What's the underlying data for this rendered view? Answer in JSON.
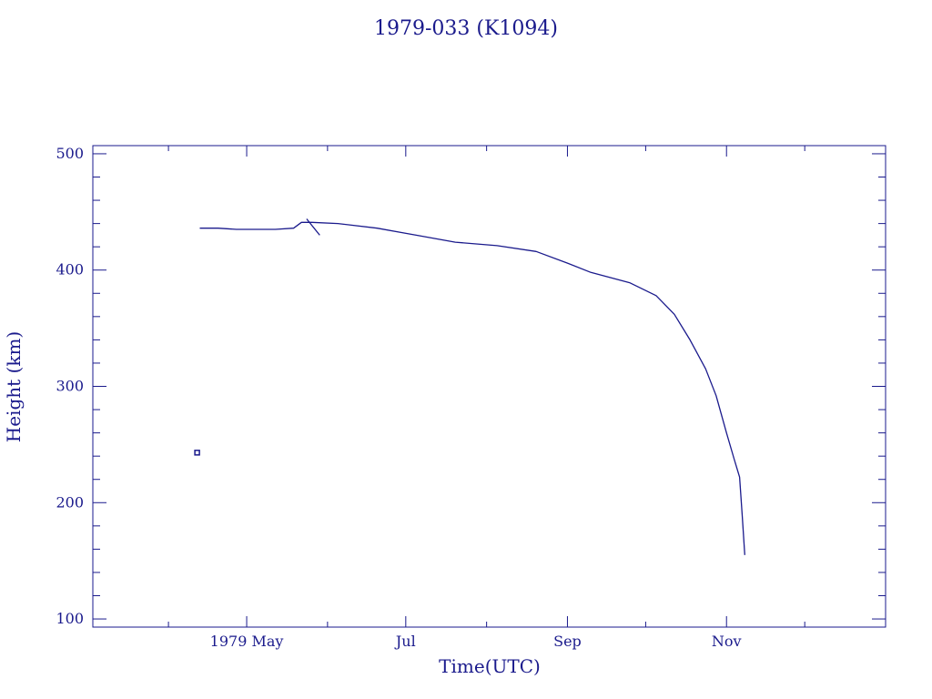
{
  "chart_data": {
    "type": "line",
    "title": "1979-033 (K1094)",
    "xlabel": "Time(UTC)",
    "ylabel": "Height (km)",
    "x_ticks": [
      {
        "date": "1979-05-01",
        "label": "1979 May"
      },
      {
        "date": "1979-07-01",
        "label": "Jul"
      },
      {
        "date": "1979-09-01",
        "label": "Sep"
      },
      {
        "date": "1979-11-01",
        "label": "Nov"
      }
    ],
    "x_minor_ticks": [
      "1979-04-01",
      "1979-06-01",
      "1979-08-01",
      "1979-10-01",
      "1979-12-01"
    ],
    "xlim": [
      "1979-03-03",
      "1980-01-01"
    ],
    "y_ticks": [
      100,
      200,
      300,
      400,
      500
    ],
    "ylim": [
      93,
      507
    ],
    "grid": false,
    "color": "#1a1a8c",
    "series": [
      {
        "x": [
          "1979-04-13",
          "1979-04-20",
          "1979-04-27",
          "1979-05-05",
          "1979-05-12",
          "1979-05-19",
          "1979-05-22",
          "1979-05-26",
          "1979-06-05",
          "1979-06-20",
          "1979-07-05",
          "1979-07-20",
          "1979-08-05",
          "1979-08-20",
          "1979-09-01",
          "1979-09-10",
          "1979-09-25",
          "1979-10-05",
          "1979-10-12",
          "1979-10-18",
          "1979-10-24",
          "1979-10-28",
          "1979-11-01",
          "1979-11-04",
          "1979-11-06",
          "1979-11-07",
          "1979-11-08"
        ],
        "y": [
          436,
          436,
          435,
          435,
          435,
          436,
          441,
          441,
          440,
          436,
          430,
          424,
          421,
          416,
          406,
          398,
          389,
          378,
          362,
          340,
          315,
          292,
          260,
          237,
          222,
          190,
          155
        ]
      },
      {
        "x": [
          "1979-05-24",
          "1979-05-29"
        ],
        "y": [
          444,
          430
        ]
      }
    ],
    "points": [
      {
        "x": "1979-04-12",
        "y": 243
      }
    ]
  }
}
